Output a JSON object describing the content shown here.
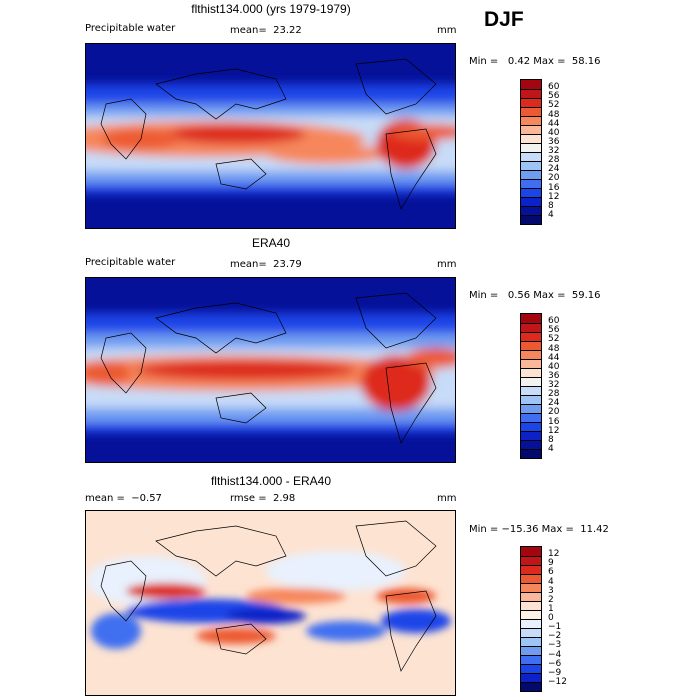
{
  "season": "DJF",
  "panels": [
    {
      "title": "flthist134.000 (yrs 1979-1979)",
      "left_label": "Precipitable water",
      "center_label": "mean=  23.22",
      "units": "mm",
      "minmax": "Min =   0.42 Max =  58.16",
      "colorbar_ticks": [
        "60",
        "56",
        "52",
        "48",
        "44",
        "40",
        "36",
        "32",
        "28",
        "24",
        "20",
        "16",
        "12",
        "8",
        "4"
      ],
      "colorbar_colors": [
        "#a3060f",
        "#c0161a",
        "#dd2a1e",
        "#ec5a33",
        "#f6875c",
        "#fab799",
        "#fde3d2",
        "#f2f2f0",
        "#c7dcf8",
        "#9ec4f6",
        "#6f9cf1",
        "#3f6ff0",
        "#1b45e8",
        "#0c22c8",
        "#061199",
        "#03096d"
      ]
    },
    {
      "title": "ERA40",
      "left_label": "Precipitable water",
      "center_label": "mean=  23.79",
      "units": "mm",
      "minmax": "Min =   0.56 Max =  59.16",
      "colorbar_ticks": [
        "60",
        "56",
        "52",
        "48",
        "44",
        "40",
        "36",
        "32",
        "28",
        "24",
        "20",
        "16",
        "12",
        "8",
        "4"
      ],
      "colorbar_colors": [
        "#a3060f",
        "#c0161a",
        "#dd2a1e",
        "#ec5a33",
        "#f6875c",
        "#fab799",
        "#fde3d2",
        "#f2f2f0",
        "#c7dcf8",
        "#9ec4f6",
        "#6f9cf1",
        "#3f6ff0",
        "#1b45e8",
        "#0c22c8",
        "#061199",
        "#03096d"
      ]
    },
    {
      "title": "flthist134.000 - ERA40",
      "left_label": "mean =  −0.57",
      "center_label": "rmse =  2.98",
      "units": "mm",
      "minmax": "Min = −15.36 Max =  11.42",
      "colorbar_ticks": [
        "12",
        "9",
        "6",
        "4",
        "3",
        "2",
        "1",
        "0",
        "−1",
        "−2",
        "−3",
        "−4",
        "−6",
        "−9",
        "−12"
      ],
      "colorbar_colors": [
        "#a3060f",
        "#c0161a",
        "#dd2a1e",
        "#ec5a33",
        "#f6875c",
        "#fab799",
        "#fde3d2",
        "#fdf0e6",
        "#e8f1fd",
        "#c7dcf8",
        "#9ec4f6",
        "#6f9cf1",
        "#3f6ff0",
        "#1b45e8",
        "#0c22c8",
        "#03096d"
      ]
    }
  ]
}
